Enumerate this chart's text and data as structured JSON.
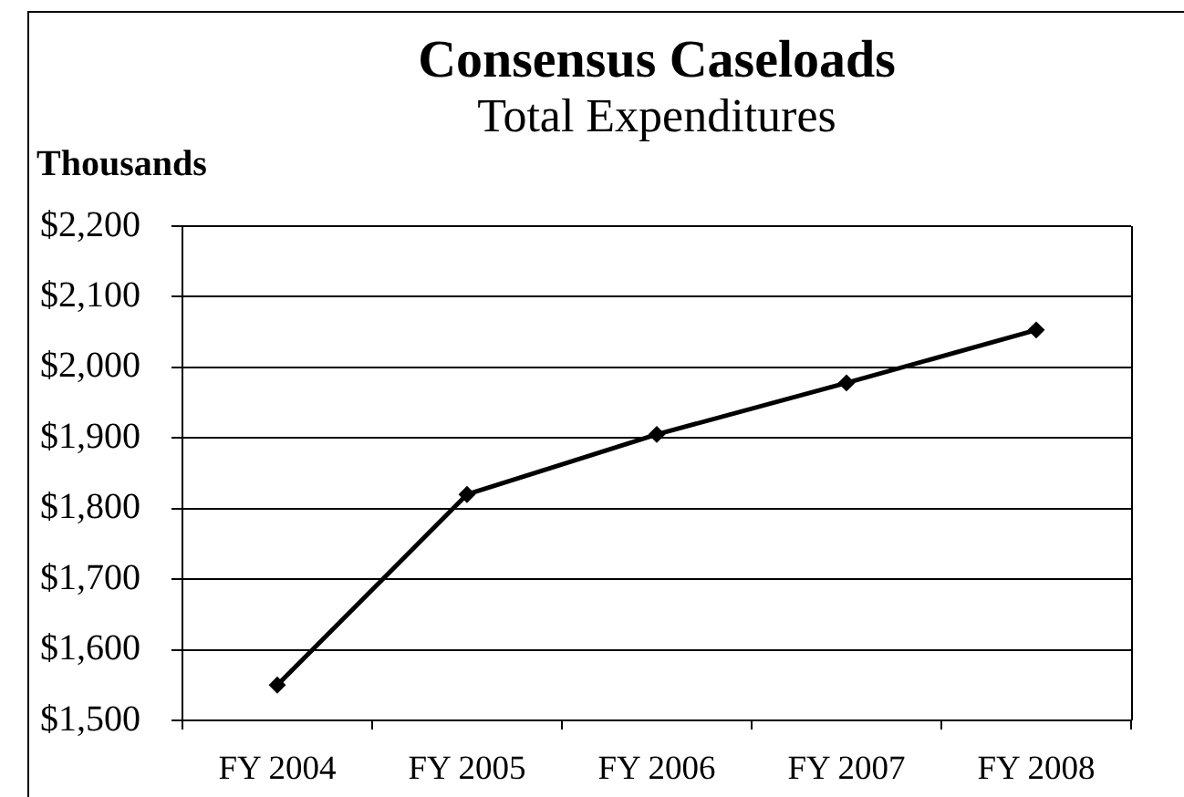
{
  "chart_data": {
    "type": "line",
    "title": "Consensus Caseloads",
    "subtitle": "Total Expenditures",
    "ylabel": "Thousands",
    "categories": [
      "FY 2004",
      "FY 2005",
      "FY 2006",
      "FY 2007",
      "FY 2008"
    ],
    "series": [
      {
        "color": "#000000",
        "values": [
          1550,
          1820,
          1905,
          1978,
          2053
        ]
      }
    ],
    "ylim": [
      1500,
      2200
    ],
    "yticks": [
      {
        "value": 1500,
        "label": "$1,500"
      },
      {
        "value": 1600,
        "label": "$1,600"
      },
      {
        "value": 1700,
        "label": "$1,700"
      },
      {
        "value": 1800,
        "label": "$1,800"
      },
      {
        "value": 1900,
        "label": "$1,900"
      },
      {
        "value": 2000,
        "label": "$2,000"
      },
      {
        "value": 2100,
        "label": "$2,100"
      },
      {
        "value": 2200,
        "label": "$2,200"
      }
    ],
    "grid": "y",
    "marker": "diamond",
    "line_style": "solid"
  }
}
